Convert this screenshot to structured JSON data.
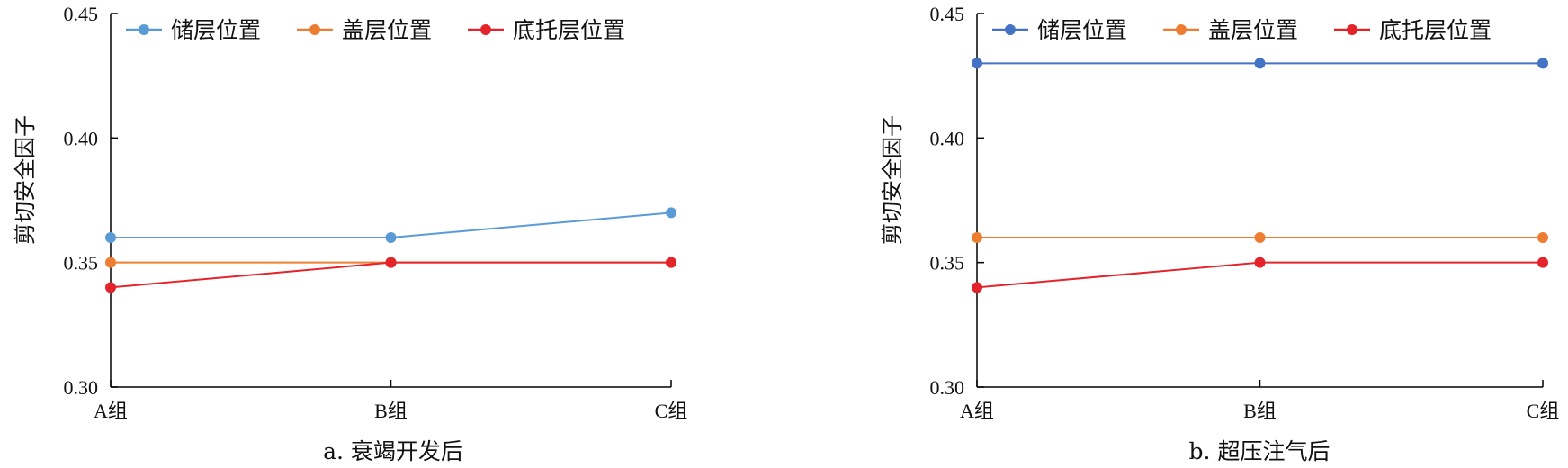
{
  "chart_data": [
    {
      "type": "line",
      "caption": "a. 衰竭开发后",
      "ylabel": "剪切安全因子",
      "xlabel": "",
      "categories": [
        "A组",
        "B组",
        "C组"
      ],
      "ylim": [
        0.3,
        0.45
      ],
      "yticks": [
        "0.30",
        "0.35",
        "0.40",
        "0.45"
      ],
      "legend_position": "top",
      "grid": false,
      "series": [
        {
          "name": "储层位置",
          "color": "#5b9bd5",
          "values": [
            0.36,
            0.36,
            0.37
          ]
        },
        {
          "name": "盖层位置",
          "color": "#ed7d31",
          "values": [
            0.35,
            0.35,
            0.35
          ]
        },
        {
          "name": "底托层位置",
          "color": "#e3242b",
          "values": [
            0.34,
            0.35,
            0.35
          ]
        }
      ]
    },
    {
      "type": "line",
      "caption": "b. 超压注气后",
      "ylabel": "剪切安全因子",
      "xlabel": "",
      "categories": [
        "A组",
        "B组",
        "C组"
      ],
      "ylim": [
        0.3,
        0.45
      ],
      "yticks": [
        "0.30",
        "0.35",
        "0.40",
        "0.45"
      ],
      "legend_position": "top",
      "grid": false,
      "series": [
        {
          "name": "储层位置",
          "color": "#4472c4",
          "values": [
            0.43,
            0.43,
            0.43
          ]
        },
        {
          "name": "盖层位置",
          "color": "#ed7d31",
          "values": [
            0.36,
            0.36,
            0.36
          ]
        },
        {
          "name": "底托层位置",
          "color": "#e3242b",
          "values": [
            0.34,
            0.35,
            0.35
          ]
        }
      ]
    }
  ]
}
